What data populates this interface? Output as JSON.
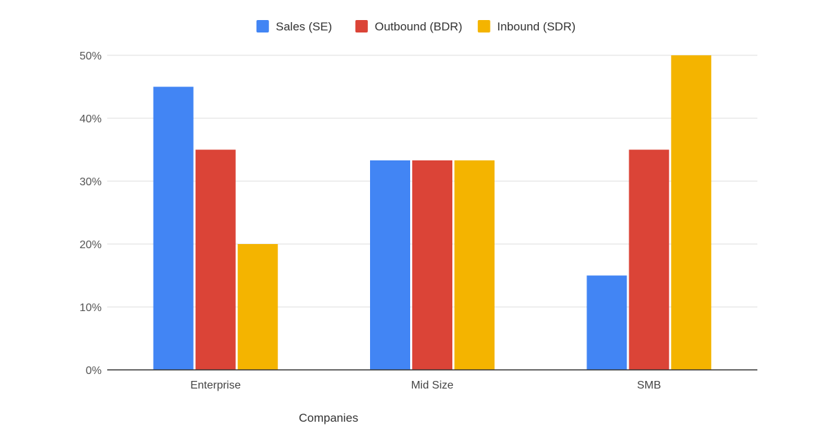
{
  "chart_data": {
    "type": "bar",
    "title": "",
    "xlabel": "Companies",
    "ylabel": "",
    "categories": [
      "Enterprise",
      "Mid Size",
      "SMB"
    ],
    "series": [
      {
        "name": "Sales (SE)",
        "color": "#4285F4",
        "values": [
          45,
          33.3,
          15
        ]
      },
      {
        "name": "Outbound (BDR)",
        "color": "#DB4437",
        "values": [
          35,
          33.3,
          35
        ]
      },
      {
        "name": "Inbound (SDR)",
        "color": "#F4B400",
        "values": [
          20,
          33.3,
          50
        ]
      }
    ],
    "ylim": [
      0,
      50
    ],
    "yticks": [
      {
        "value": 0,
        "label": "0%"
      },
      {
        "value": 10,
        "label": "10%"
      },
      {
        "value": 20,
        "label": "20%"
      },
      {
        "value": 30,
        "label": "30%"
      },
      {
        "value": 40,
        "label": "40%"
      },
      {
        "value": 50,
        "label": "50%"
      }
    ],
    "grid": true,
    "legend": "top-center"
  }
}
